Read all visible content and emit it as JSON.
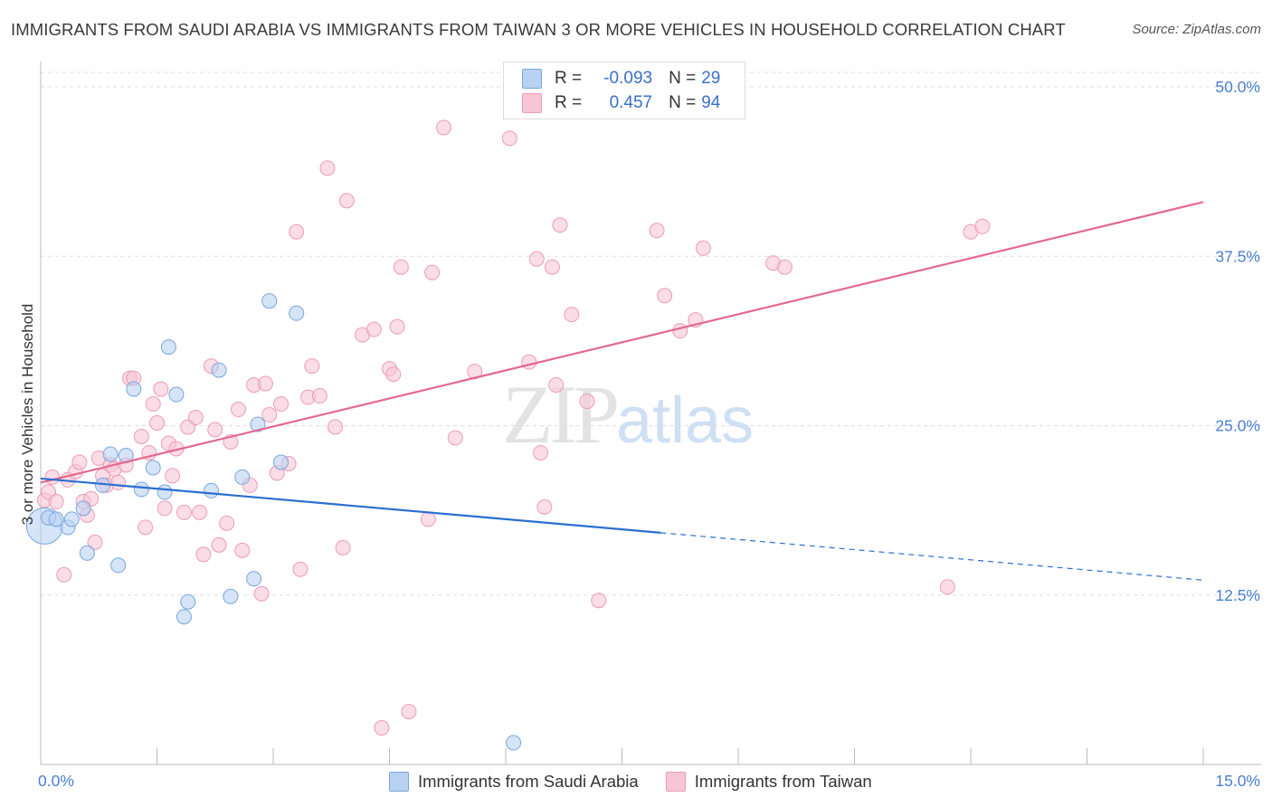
{
  "title": "IMMIGRANTS FROM SAUDI ARABIA VS IMMIGRANTS FROM TAIWAN 3 OR MORE VEHICLES IN HOUSEHOLD CORRELATION CHART",
  "source": "Source: ZipAtlas.com",
  "watermark": {
    "zip": "ZIP",
    "atlas": "atlas"
  },
  "colors": {
    "saudi_fill": "#b9d2f2",
    "saudi_stroke": "#7aa5de",
    "saudi_line": "#2a6fd0",
    "taiwan_fill": "#f7c6d6",
    "taiwan_stroke": "#ee9bb7",
    "taiwan_line": "#e4698f",
    "tick_label": "#4a7fd0",
    "grid": "#dddddd"
  },
  "legend": {
    "rows": [
      {
        "r_label": "R =",
        "r_value": "-0.093",
        "n_label": "N =",
        "n_value": "29"
      },
      {
        "r_label": "R =",
        "r_value": "0.457",
        "n_label": "N =",
        "n_value": "94"
      }
    ]
  },
  "chart_data": {
    "type": "scatter",
    "title": "IMMIGRANTS FROM SAUDI ARABIA VS IMMIGRANTS FROM TAIWAN 3 OR MORE VEHICLES IN HOUSEHOLD CORRELATION CHART",
    "xlabel": "",
    "ylabel": "3 or more Vehicles in Household",
    "xlim": [
      0,
      15
    ],
    "ylim": [
      0,
      50
    ],
    "x_tick_labels": [
      "0.0%",
      "15.0%"
    ],
    "y_ticks": [
      12.5,
      25.0,
      37.5,
      50.0
    ],
    "y_tick_labels": [
      "12.5%",
      "25.0%",
      "37.5%",
      "50.0%"
    ],
    "grid": "horizontal dashed",
    "legend_position": "top-center",
    "series": [
      {
        "name": "Immigrants from Saudi Arabia",
        "color": "#b9d2f2",
        "points": [
          [
            0.05,
            17.6
          ],
          [
            0.1,
            18.2
          ],
          [
            0.2,
            18.1
          ],
          [
            0.35,
            17.5
          ],
          [
            0.4,
            18.1
          ],
          [
            0.55,
            18.9
          ],
          [
            0.6,
            15.6
          ],
          [
            1.0,
            14.7
          ],
          [
            0.8,
            20.6
          ],
          [
            0.9,
            22.9
          ],
          [
            1.1,
            22.8
          ],
          [
            1.2,
            27.7
          ],
          [
            1.3,
            20.3
          ],
          [
            1.45,
            21.9
          ],
          [
            1.6,
            20.1
          ],
          [
            1.65,
            30.8
          ],
          [
            1.75,
            27.3
          ],
          [
            1.85,
            10.9
          ],
          [
            1.9,
            12.0
          ],
          [
            2.2,
            20.2
          ],
          [
            2.3,
            29.1
          ],
          [
            2.45,
            12.4
          ],
          [
            2.6,
            21.2
          ],
          [
            2.75,
            13.7
          ],
          [
            2.8,
            25.1
          ],
          [
            2.95,
            34.2
          ],
          [
            3.1,
            22.3
          ],
          [
            3.3,
            33.3
          ],
          [
            6.1,
            1.6
          ]
        ],
        "trend": {
          "x": [
            0,
            8
          ],
          "y": [
            21.1,
            17.1
          ],
          "dashed_to": [
            15,
            13.6
          ]
        }
      },
      {
        "name": "Immigrants from Taiwan",
        "color": "#f7c6d6",
        "points": [
          [
            0.05,
            19.5
          ],
          [
            0.1,
            20.1
          ],
          [
            0.15,
            21.2
          ],
          [
            0.2,
            19.4
          ],
          [
            0.3,
            14.0
          ],
          [
            0.35,
            21.0
          ],
          [
            0.45,
            21.6
          ],
          [
            0.5,
            22.3
          ],
          [
            0.55,
            19.4
          ],
          [
            0.6,
            18.4
          ],
          [
            0.65,
            19.6
          ],
          [
            0.7,
            16.4
          ],
          [
            0.75,
            22.6
          ],
          [
            0.8,
            21.3
          ],
          [
            0.85,
            20.6
          ],
          [
            0.9,
            22.1
          ],
          [
            0.95,
            21.8
          ],
          [
            1.0,
            20.8
          ],
          [
            1.1,
            22.1
          ],
          [
            1.15,
            28.5
          ],
          [
            1.2,
            28.5
          ],
          [
            1.3,
            24.2
          ],
          [
            1.35,
            17.5
          ],
          [
            1.4,
            23.0
          ],
          [
            1.45,
            26.6
          ],
          [
            1.5,
            25.2
          ],
          [
            1.55,
            27.7
          ],
          [
            1.6,
            18.9
          ],
          [
            1.65,
            23.7
          ],
          [
            1.7,
            21.3
          ],
          [
            1.75,
            23.3
          ],
          [
            1.85,
            18.6
          ],
          [
            1.9,
            24.9
          ],
          [
            2.0,
            25.6
          ],
          [
            2.05,
            18.6
          ],
          [
            2.1,
            15.5
          ],
          [
            2.2,
            29.4
          ],
          [
            2.25,
            24.7
          ],
          [
            2.3,
            16.2
          ],
          [
            2.4,
            17.8
          ],
          [
            2.45,
            23.8
          ],
          [
            2.55,
            26.2
          ],
          [
            2.6,
            15.8
          ],
          [
            2.7,
            20.6
          ],
          [
            2.75,
            28.0
          ],
          [
            2.85,
            12.6
          ],
          [
            2.9,
            28.1
          ],
          [
            2.95,
            25.8
          ],
          [
            3.05,
            21.5
          ],
          [
            3.1,
            26.6
          ],
          [
            3.2,
            22.2
          ],
          [
            3.3,
            39.3
          ],
          [
            3.35,
            14.4
          ],
          [
            3.45,
            27.1
          ],
          [
            3.5,
            29.4
          ],
          [
            3.6,
            27.2
          ],
          [
            3.7,
            44.0
          ],
          [
            3.8,
            24.9
          ],
          [
            3.9,
            16.0
          ],
          [
            3.95,
            41.6
          ],
          [
            4.15,
            31.7
          ],
          [
            4.3,
            32.1
          ],
          [
            4.4,
            2.7
          ],
          [
            4.5,
            29.2
          ],
          [
            4.55,
            28.8
          ],
          [
            4.6,
            32.3
          ],
          [
            4.65,
            36.7
          ],
          [
            4.75,
            3.9
          ],
          [
            5.0,
            18.1
          ],
          [
            5.05,
            36.3
          ],
          [
            5.2,
            47.0
          ],
          [
            5.35,
            24.1
          ],
          [
            5.6,
            29.0
          ],
          [
            6.05,
            46.2
          ],
          [
            6.3,
            29.7
          ],
          [
            6.4,
            37.3
          ],
          [
            6.45,
            23.0
          ],
          [
            6.5,
            19.0
          ],
          [
            6.6,
            36.7
          ],
          [
            6.65,
            28.0
          ],
          [
            6.7,
            39.8
          ],
          [
            6.85,
            33.2
          ],
          [
            7.05,
            26.8
          ],
          [
            7.2,
            12.1
          ],
          [
            7.95,
            39.4
          ],
          [
            8.05,
            34.6
          ],
          [
            8.25,
            32.0
          ],
          [
            8.45,
            32.8
          ],
          [
            8.55,
            38.1
          ],
          [
            9.45,
            37.0
          ],
          [
            9.6,
            36.7
          ],
          [
            11.7,
            13.1
          ],
          [
            12.0,
            39.3
          ],
          [
            12.15,
            39.7
          ]
        ],
        "trend": {
          "x": [
            0,
            15
          ],
          "y": [
            20.8,
            41.5
          ]
        }
      }
    ]
  }
}
